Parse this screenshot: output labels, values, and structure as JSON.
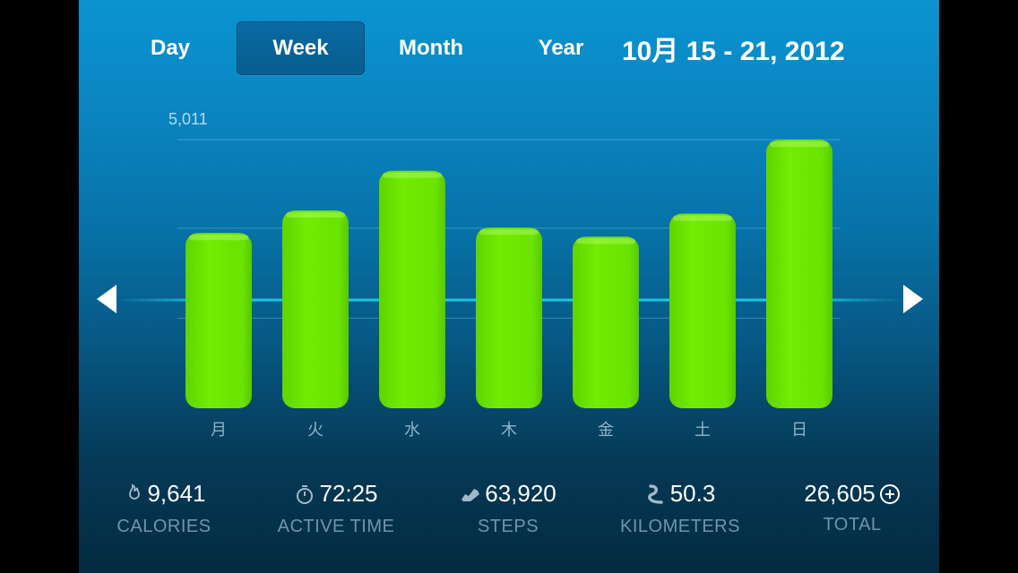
{
  "tabs": [
    {
      "label": "Day",
      "active": false
    },
    {
      "label": "Week",
      "active": true
    },
    {
      "label": "Month",
      "active": false
    },
    {
      "label": "Year",
      "active": false
    }
  ],
  "date_range": "10月 15 - 21, 2012",
  "chart_data": {
    "type": "bar",
    "categories": [
      "月",
      "火",
      "水",
      "木",
      "金",
      "土",
      "日"
    ],
    "values": [
      3270,
      3690,
      4430,
      3370,
      3200,
      3630,
      5011
    ],
    "ylim": [
      0,
      5011
    ],
    "max_label": "5,011",
    "goal_line_value": 2020,
    "gridlines": [
      1680,
      3360,
      5011
    ],
    "bar_color": "#6ae400",
    "grid": true
  },
  "stats": [
    {
      "icon": "flame-icon",
      "value": "9,641",
      "label": "CALORIES"
    },
    {
      "icon": "stopwatch-icon",
      "value": "72:25",
      "label": "ACTIVE TIME"
    },
    {
      "icon": "shoe-icon",
      "value": "63,920",
      "label": "STEPS"
    },
    {
      "icon": "path-icon",
      "value": "50.3",
      "label": "KILOMETERS"
    },
    {
      "icon": "plus-circle-icon",
      "value": "26,605",
      "label": "TOTAL"
    }
  ],
  "nav": {
    "prev_icon": "chevron-left-icon",
    "next_icon": "chevron-right-icon"
  },
  "colors": {
    "accent": "#6ae400",
    "goal_line": "#1fd0f0",
    "label_muted": "#6f95ab"
  }
}
